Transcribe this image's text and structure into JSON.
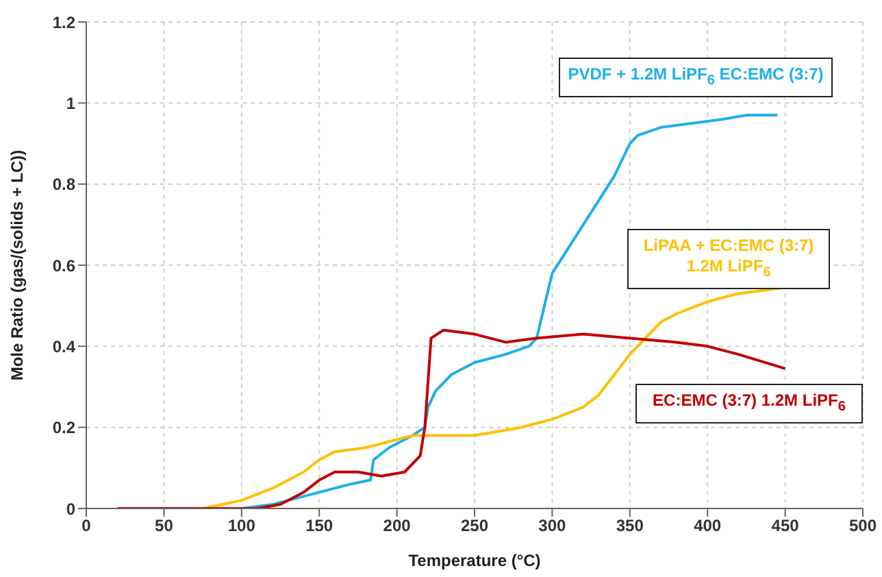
{
  "chart_data": {
    "type": "line",
    "xlabel": "Temperature (°C)",
    "ylabel": "Mole Ratio (gas/(solids + LC))",
    "xlim": [
      0,
      500
    ],
    "xticks": [
      0,
      50,
      100,
      150,
      200,
      250,
      300,
      350,
      400,
      450,
      500
    ],
    "ylim": [
      0,
      1.2
    ],
    "yticks": [
      0,
      0.2,
      0.4,
      0.6,
      0.8,
      1,
      1.2
    ],
    "grid": true,
    "legend": false,
    "marker": "none",
    "line_style": "solid",
    "series": [
      {
        "name": "PVDF + 1.2M LiPF$_{6}$ EC:EMC (3:7)",
        "color": "#1fb0e8",
        "x": [
          100,
          120,
          150,
          170,
          183,
          185,
          195,
          210,
          218,
          220,
          225,
          235,
          250,
          270,
          285,
          290,
          295,
          300,
          310,
          320,
          330,
          340,
          350,
          355,
          370,
          390,
          410,
          425,
          445
        ],
        "values": [
          0,
          0.01,
          0.04,
          0.06,
          0.07,
          0.12,
          0.15,
          0.18,
          0.2,
          0.25,
          0.29,
          0.33,
          0.36,
          0.38,
          0.4,
          0.42,
          0.5,
          0.58,
          0.64,
          0.7,
          0.76,
          0.82,
          0.9,
          0.92,
          0.94,
          0.95,
          0.96,
          0.97,
          0.97
        ]
      },
      {
        "name": "LiPAA + EC:EMC (3:7) 1.2M LiPF$_{6}$",
        "color": "#ffc000",
        "x": [
          75,
          100,
          120,
          140,
          150,
          160,
          180,
          200,
          210,
          250,
          280,
          300,
          320,
          330,
          340,
          350,
          360,
          370,
          380,
          400,
          420,
          450
        ],
        "values": [
          0,
          0.02,
          0.05,
          0.09,
          0.12,
          0.14,
          0.15,
          0.17,
          0.18,
          0.18,
          0.2,
          0.22,
          0.25,
          0.28,
          0.33,
          0.38,
          0.42,
          0.46,
          0.48,
          0.51,
          0.53,
          0.545
        ]
      },
      {
        "name": "EC:EMC (3:7) 1.2M LiPF$_{6}$",
        "color": "#c00000",
        "x": [
          20,
          110,
          125,
          140,
          150,
          160,
          175,
          190,
          205,
          215,
          218,
          222,
          230,
          250,
          270,
          290,
          320,
          350,
          380,
          400,
          420,
          450
        ],
        "values": [
          0,
          0,
          0.01,
          0.04,
          0.07,
          0.09,
          0.09,
          0.08,
          0.09,
          0.13,
          0.2,
          0.42,
          0.44,
          0.43,
          0.41,
          0.42,
          0.43,
          0.42,
          0.41,
          0.4,
          0.38,
          0.345
        ]
      }
    ]
  }
}
